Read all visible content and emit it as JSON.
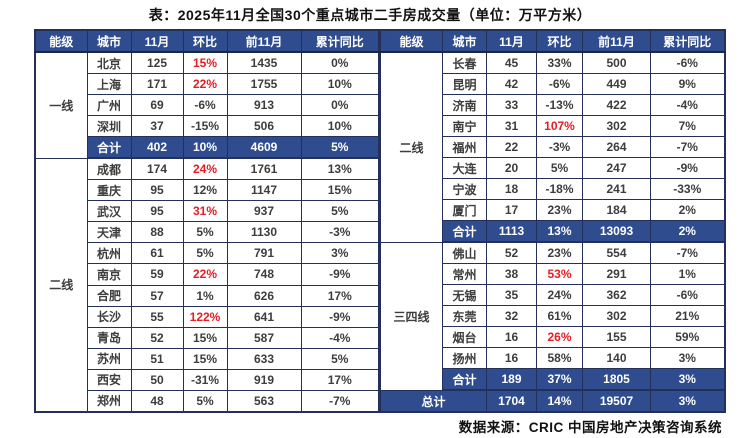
{
  "title": "表：2025年11月全国30个重点城市二手房成交量（单位：万平方米）",
  "source": "数据来源：CRIC 中国房地产决策咨询系统",
  "header": {
    "tier": "能级",
    "city": "城市",
    "m11": "11月",
    "mom": "环比",
    "prev11": "前11月",
    "yoy": "累计同比"
  },
  "colors": {
    "header_bg": "#2f4c8f",
    "header_fg": "#ffffff",
    "highlight_red": "#e81c24",
    "border": "#24305a",
    "body_text": "#3d3d3d"
  },
  "tables": {
    "left": {
      "rows": [
        {
          "tier": "一线",
          "tier_span": 5,
          "city": "北京",
          "m11": "125",
          "mom": "15%",
          "red": true,
          "prev11": "1435",
          "yoy": "0%"
        },
        {
          "city": "上海",
          "m11": "171",
          "mom": "22%",
          "red": true,
          "prev11": "1755",
          "yoy": "10%"
        },
        {
          "city": "广州",
          "m11": "69",
          "mom": "-6%",
          "prev11": "913",
          "yoy": "0%"
        },
        {
          "city": "深圳",
          "m11": "37",
          "mom": "-15%",
          "prev11": "506",
          "yoy": "10%"
        },
        {
          "kind": "total",
          "city": "合计",
          "m11": "402",
          "mom": "10%",
          "prev11": "4609",
          "yoy": "5%",
          "group_end": true
        },
        {
          "tier": "二线",
          "tier_span": 12,
          "city": "成都",
          "m11": "174",
          "mom": "24%",
          "red": true,
          "prev11": "1761",
          "yoy": "13%"
        },
        {
          "city": "重庆",
          "m11": "95",
          "mom": "12%",
          "prev11": "1147",
          "yoy": "15%"
        },
        {
          "city": "武汉",
          "m11": "95",
          "mom": "31%",
          "red": true,
          "prev11": "937",
          "yoy": "5%"
        },
        {
          "city": "天津",
          "m11": "88",
          "mom": "5%",
          "prev11": "1130",
          "yoy": "-3%"
        },
        {
          "city": "杭州",
          "m11": "61",
          "mom": "5%",
          "prev11": "791",
          "yoy": "3%"
        },
        {
          "city": "南京",
          "m11": "59",
          "mom": "22%",
          "red": true,
          "prev11": "748",
          "yoy": "-9%"
        },
        {
          "city": "合肥",
          "m11": "57",
          "mom": "1%",
          "prev11": "626",
          "yoy": "17%"
        },
        {
          "city": "长沙",
          "m11": "55",
          "mom": "122%",
          "red": true,
          "prev11": "641",
          "yoy": "-9%"
        },
        {
          "city": "青岛",
          "m11": "52",
          "mom": "15%",
          "prev11": "587",
          "yoy": "-4%"
        },
        {
          "city": "苏州",
          "m11": "51",
          "mom": "15%",
          "prev11": "633",
          "yoy": "5%"
        },
        {
          "city": "西安",
          "m11": "50",
          "mom": "-31%",
          "prev11": "919",
          "yoy": "17%"
        },
        {
          "city": "郑州",
          "m11": "48",
          "mom": "5%",
          "prev11": "563",
          "yoy": "-7%"
        }
      ]
    },
    "right": {
      "rows": [
        {
          "tier": "二线",
          "tier_span": 9,
          "city": "长春",
          "m11": "45",
          "mom": "33%",
          "prev11": "500",
          "yoy": "-6%"
        },
        {
          "city": "昆明",
          "m11": "42",
          "mom": "-6%",
          "prev11": "449",
          "yoy": "9%"
        },
        {
          "city": "济南",
          "m11": "33",
          "mom": "-13%",
          "prev11": "422",
          "yoy": "-4%"
        },
        {
          "city": "南宁",
          "m11": "31",
          "mom": "107%",
          "red": true,
          "prev11": "302",
          "yoy": "7%"
        },
        {
          "city": "福州",
          "m11": "22",
          "mom": "-3%",
          "prev11": "264",
          "yoy": "-7%"
        },
        {
          "city": "大连",
          "m11": "20",
          "mom": "5%",
          "prev11": "247",
          "yoy": "-9%"
        },
        {
          "city": "宁波",
          "m11": "18",
          "mom": "-18%",
          "prev11": "241",
          "yoy": "-33%"
        },
        {
          "city": "厦门",
          "m11": "17",
          "mom": "23%",
          "prev11": "184",
          "yoy": "2%"
        },
        {
          "kind": "total",
          "city": "合计",
          "m11": "1113",
          "mom": "13%",
          "prev11": "13093",
          "yoy": "2%",
          "group_end": true
        },
        {
          "tier": "三四线",
          "tier_span": 7,
          "city": "佛山",
          "m11": "52",
          "mom": "23%",
          "prev11": "554",
          "yoy": "-7%"
        },
        {
          "city": "常州",
          "m11": "38",
          "mom": "53%",
          "red": true,
          "prev11": "291",
          "yoy": "1%"
        },
        {
          "city": "无锡",
          "m11": "35",
          "mom": "24%",
          "prev11": "362",
          "yoy": "-6%"
        },
        {
          "city": "东莞",
          "m11": "32",
          "mom": "61%",
          "prev11": "302",
          "yoy": "21%"
        },
        {
          "city": "烟台",
          "m11": "16",
          "mom": "26%",
          "red": true,
          "prev11": "155",
          "yoy": "59%"
        },
        {
          "city": "扬州",
          "m11": "16",
          "mom": "58%",
          "prev11": "140",
          "yoy": "3%"
        },
        {
          "kind": "total",
          "city": "合计",
          "m11": "189",
          "mom": "37%",
          "prev11": "1805",
          "yoy": "3%",
          "group_end": true
        },
        {
          "kind": "grand",
          "city": "总计",
          "m11": "1704",
          "mom": "14%",
          "prev11": "19507",
          "yoy": "3%"
        }
      ]
    }
  }
}
